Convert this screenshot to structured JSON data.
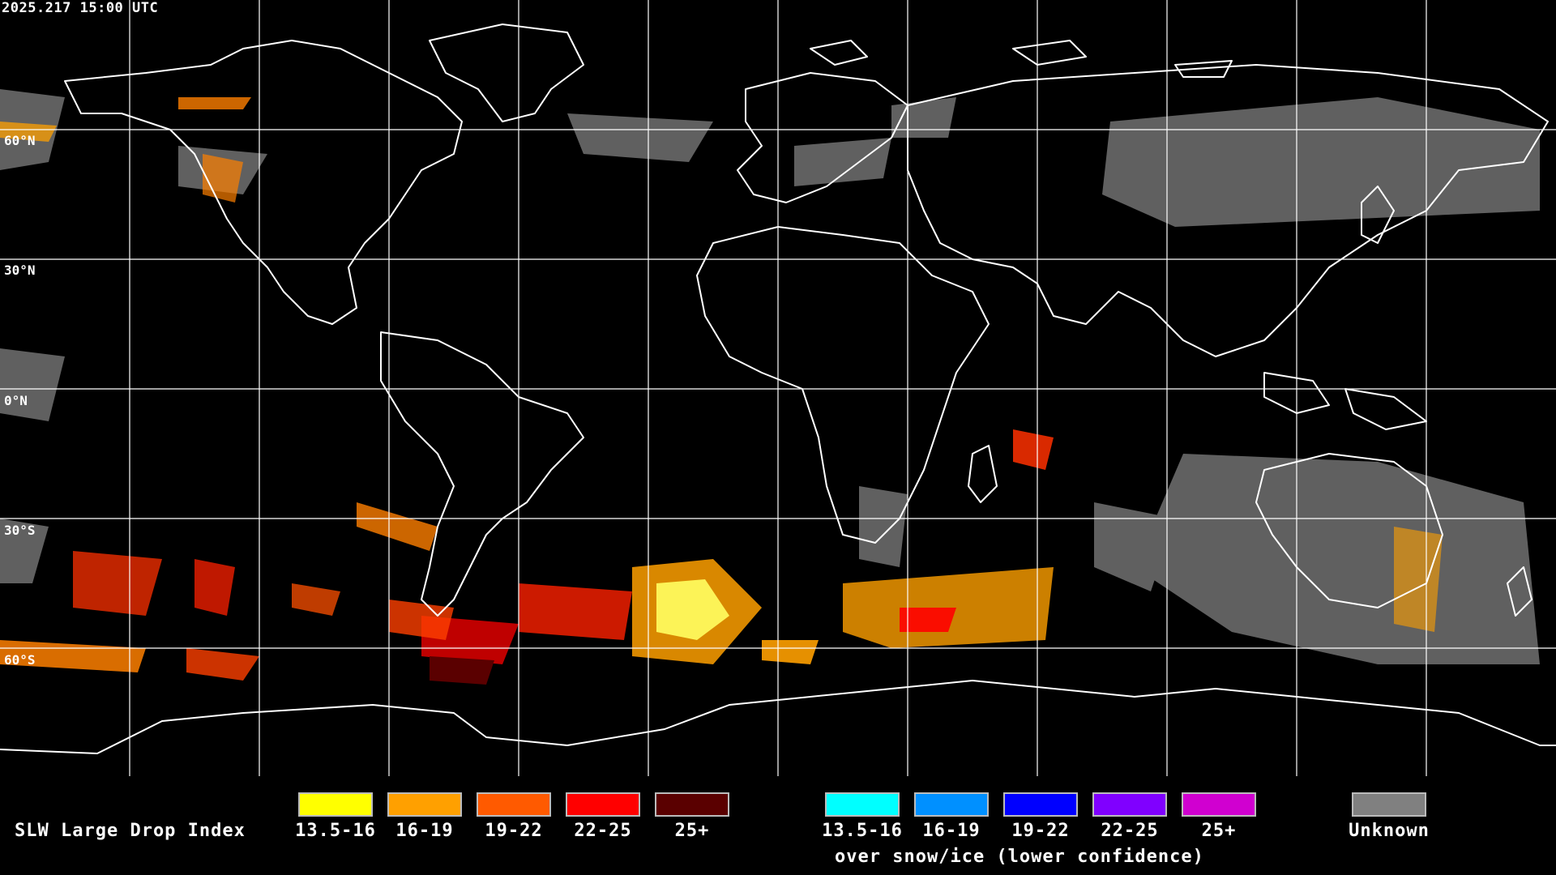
{
  "header": {
    "timestamp": "2025.217 15:00 UTC"
  },
  "lat_labels": [
    "60°N",
    "30°N",
    "0°N",
    "30°S",
    "60°S"
  ],
  "legend": {
    "title": "SLW Large Drop Index",
    "normal_ranges": [
      {
        "label": "13.5-16",
        "color": "#ffff00"
      },
      {
        "label": "16-19",
        "color": "#ffa000"
      },
      {
        "label": "19-22",
        "color": "#ff5a00"
      },
      {
        "label": "22-25",
        "color": "#ff0000"
      },
      {
        "label": "25+",
        "color": "#5a0000"
      }
    ],
    "snow_ice_ranges": [
      {
        "label": "13.5-16",
        "color": "#00ffff"
      },
      {
        "label": "16-19",
        "color": "#0090ff"
      },
      {
        "label": "19-22",
        "color": "#0000ff"
      },
      {
        "label": "22-25",
        "color": "#8000ff"
      },
      {
        "label": "25+",
        "color": "#d000d0"
      }
    ],
    "snow_ice_caption": "over snow/ice (lower confidence)",
    "unknown": {
      "label": "Unknown",
      "color": "#808080"
    }
  }
}
